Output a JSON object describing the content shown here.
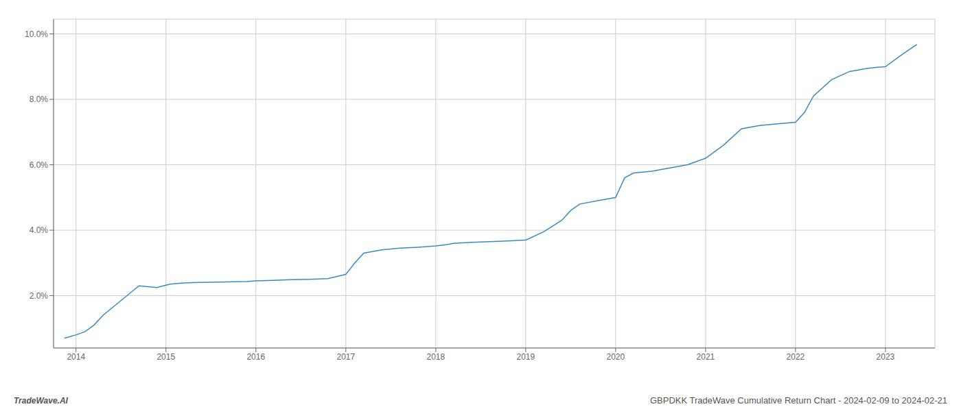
{
  "chart_data": {
    "type": "line",
    "title": "GBPDKK TradeWave Cumulative Return Chart - 2024-02-09 to 2024-02-21",
    "annotations": [
      "TradeWave.AI"
    ],
    "x": [
      2013.87,
      2014.0,
      2014.1,
      2014.2,
      2014.3,
      2014.5,
      2014.7,
      2014.9,
      2015.0,
      2015.05,
      2015.15,
      2015.3,
      2015.5,
      2015.7,
      2015.9,
      2016.0,
      2016.2,
      2016.4,
      2016.6,
      2016.8,
      2017.0,
      2017.1,
      2017.2,
      2017.4,
      2017.6,
      2017.8,
      2018.0,
      2018.1,
      2018.2,
      2018.4,
      2018.6,
      2018.8,
      2019.0,
      2019.2,
      2019.4,
      2019.5,
      2019.6,
      2019.8,
      2020.0,
      2020.05,
      2020.1,
      2020.2,
      2020.4,
      2020.6,
      2020.8,
      2021.0,
      2021.2,
      2021.4,
      2021.6,
      2021.8,
      2022.0,
      2022.1,
      2022.2,
      2022.4,
      2022.6,
      2022.8,
      2023.0,
      2023.2,
      2023.35
    ],
    "values": [
      0.007,
      0.008,
      0.009,
      0.011,
      0.014,
      0.0185,
      0.023,
      0.0225,
      0.0232,
      0.0235,
      0.0238,
      0.024,
      0.0241,
      0.0242,
      0.0243,
      0.0245,
      0.0247,
      0.0249,
      0.025,
      0.0252,
      0.0265,
      0.03,
      0.033,
      0.034,
      0.0345,
      0.0348,
      0.0352,
      0.0355,
      0.036,
      0.0363,
      0.0365,
      0.0367,
      0.037,
      0.0395,
      0.043,
      0.046,
      0.048,
      0.049,
      0.05,
      0.053,
      0.056,
      0.0575,
      0.058,
      0.059,
      0.06,
      0.062,
      0.066,
      0.071,
      0.072,
      0.0725,
      0.073,
      0.076,
      0.081,
      0.086,
      0.0885,
      0.0895,
      0.09,
      0.094,
      0.0968
    ],
    "color": "#3a8abf",
    "xlim": [
      2013.75,
      2023.55
    ],
    "xticks": [
      2014,
      2015,
      2016,
      2017,
      2018,
      2019,
      2020,
      2021,
      2022,
      2023
    ],
    "ylim": [
      0.004,
      0.1045
    ],
    "yticks": [
      {
        "value": 0.02,
        "label": "2.0%"
      },
      {
        "value": 0.04,
        "label": "4.0%"
      },
      {
        "value": 0.06,
        "label": "6.0%"
      },
      {
        "value": 0.08,
        "label": "8.0%"
      },
      {
        "value": 0.1,
        "label": "10.0%"
      }
    ],
    "grid": true
  }
}
